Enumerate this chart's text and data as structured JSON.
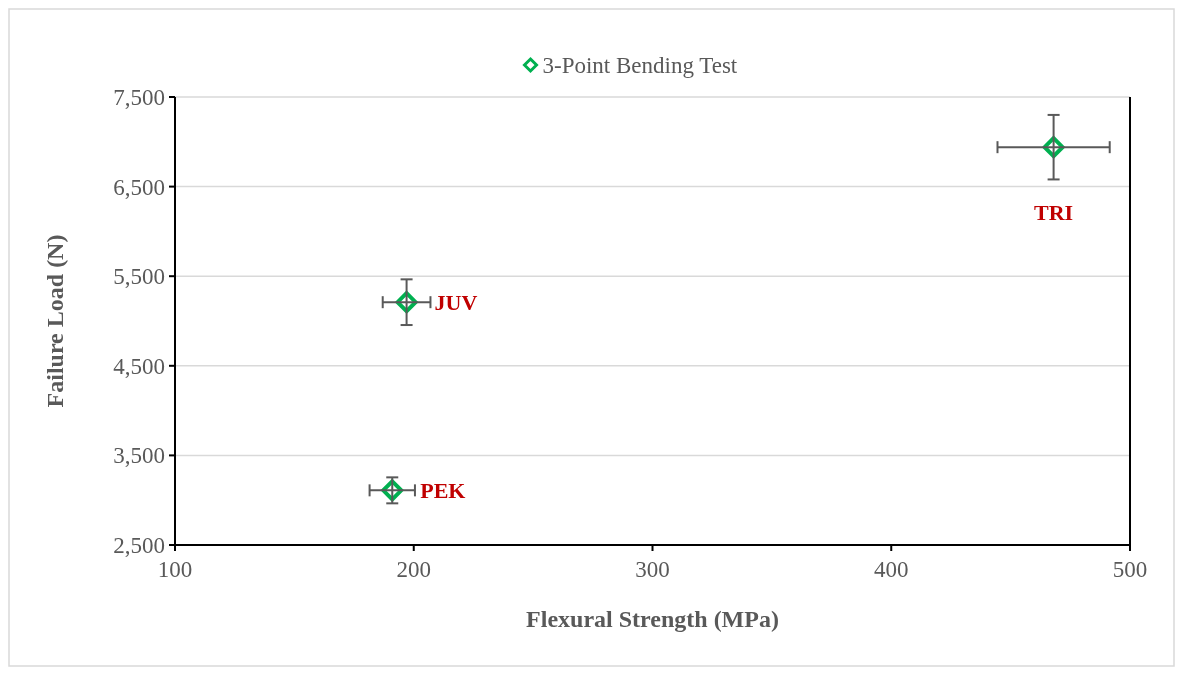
{
  "chart_data": {
    "type": "scatter",
    "xlabel": "Flexural Strength (MPa)",
    "ylabel": "Failure Load (N)",
    "x": [
      191,
      197,
      468
    ],
    "series": [
      {
        "name": "3-Point Bending Test",
        "color": "#00b050",
        "values": [
          3110,
          5210,
          6940
        ],
        "errors": [
          145,
          255,
          360
        ],
        "xerrors": [
          9.5,
          10,
          23.5
        ]
      }
    ],
    "xlim": [
      100,
      500
    ],
    "xticks": [
      100,
      200,
      300,
      400,
      500
    ],
    "ylim": [
      2500,
      7500
    ],
    "yticks": [
      {
        "value": 2500,
        "label": "2,500"
      },
      {
        "value": 3500,
        "label": "3,500"
      },
      {
        "value": 4500,
        "label": "4,500"
      },
      {
        "value": 5500,
        "label": "5,500"
      },
      {
        "value": 6500,
        "label": "6,500"
      },
      {
        "value": 7500,
        "label": "7,500"
      }
    ],
    "annotations": [
      {
        "text": "PEK",
        "x": 191,
        "y": 3110
      },
      {
        "text": "JUV",
        "x": 197,
        "y": 5210
      },
      {
        "text": "TRI",
        "x": 468,
        "y": 6940
      }
    ],
    "grid": "y",
    "legend": "top",
    "marker": "diamond"
  }
}
